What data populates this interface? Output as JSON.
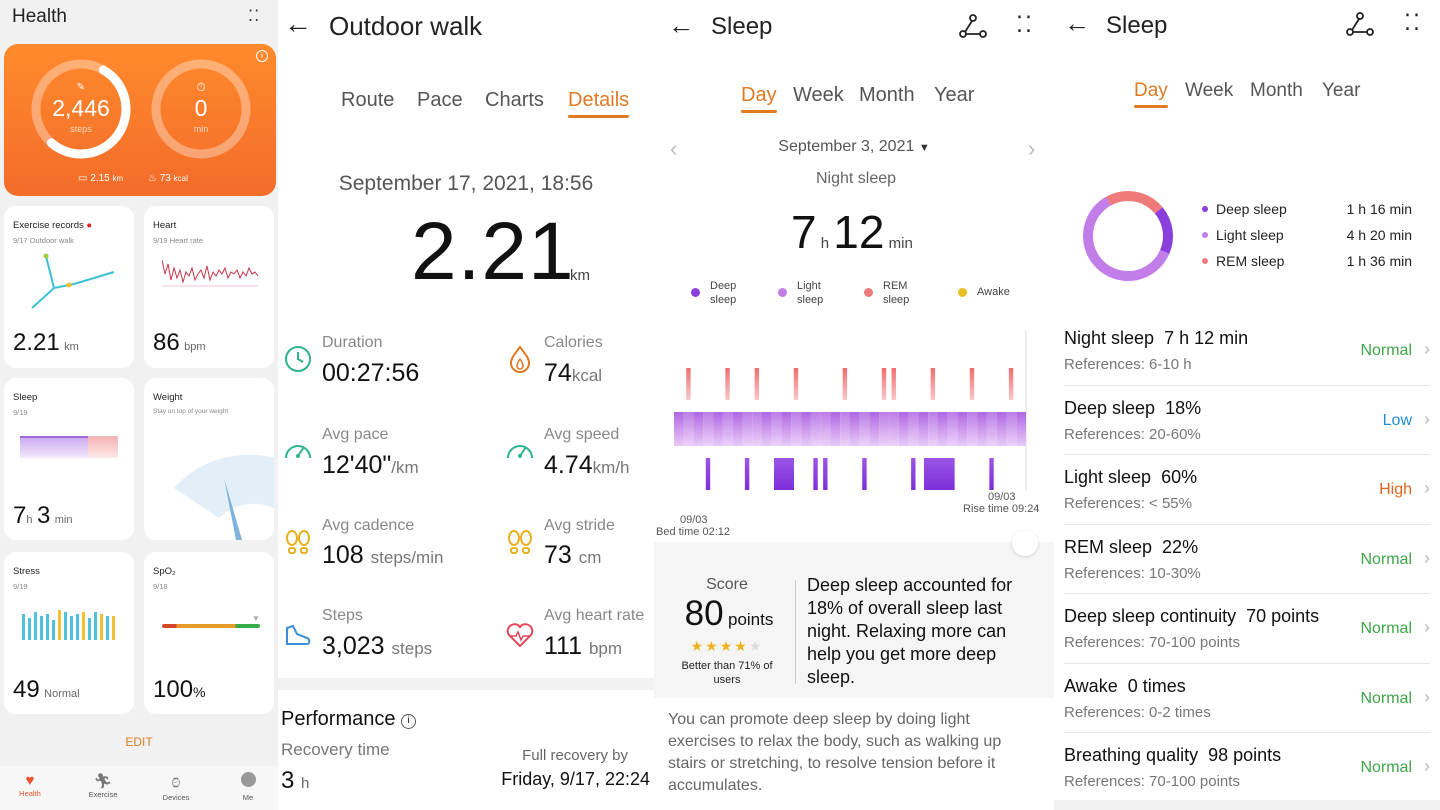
{
  "colors": {
    "accent": "#e07a22",
    "hero": "#f47a2c",
    "deep": "#8a3fdc",
    "light": "#c27ee8",
    "rem": "#ef7a7a",
    "awake": "#e6c020",
    "normal": "#3ea546",
    "low": "#1f8fd0"
  },
  "health": {
    "title": "Health",
    "steps_value": "2,446",
    "steps_label": "steps",
    "minutes_value": "0",
    "minutes_label": "min",
    "distance": "2.15",
    "distance_unit": "km",
    "calories": "73",
    "calories_unit": "kcal",
    "exercise": {
      "title": "Exercise records",
      "date": "9/17",
      "activity": "Outdoor walk",
      "value": "2.21",
      "unit": "km"
    },
    "heart": {
      "title": "Heart",
      "date": "9/19",
      "label": "Heart rate",
      "value": "86",
      "unit": "bpm"
    },
    "sleep": {
      "title": "Sleep",
      "date": "9/19",
      "h": "7",
      "h_unit": "h",
      "m": "3",
      "m_unit": "min"
    },
    "weight": {
      "title": "Weight",
      "subtitle": "Stay on top of your weight"
    },
    "stress": {
      "title": "Stress",
      "date": "9/19",
      "value": "49",
      "label": "Normal"
    },
    "spo2": {
      "title": "SpO₂",
      "date": "9/18",
      "value": "100",
      "unit": "%"
    },
    "edit": "EDIT",
    "nav": [
      {
        "label": "Health",
        "icon": "heart-icon"
      },
      {
        "label": "Exercise",
        "icon": "running-icon"
      },
      {
        "label": "Devices",
        "icon": "watch-icon"
      },
      {
        "label": "Me",
        "icon": "profile-icon"
      }
    ]
  },
  "walk": {
    "title": "Outdoor walk",
    "tabs": [
      "Route",
      "Pace",
      "Charts",
      "Details"
    ],
    "active_tab": "Details",
    "datetime": "September 17, 2021, 18:56",
    "distance": "2.21",
    "distance_unit": "km",
    "stats": [
      {
        "label": "Duration",
        "value": "00:27:56",
        "unit": "",
        "icon": "clock-icon"
      },
      {
        "label": "Calories",
        "value": "74",
        "unit": "kcal",
        "icon": "flame-icon"
      },
      {
        "label": "Avg pace",
        "value": "12'40\"",
        "unit": "/km",
        "icon": "speedometer-icon"
      },
      {
        "label": "Avg speed",
        "value": "4.74",
        "unit": "km/h",
        "icon": "speedometer-icon"
      },
      {
        "label": "Avg cadence",
        "value": "108",
        "unit": "steps/min",
        "icon": "footprints-icon"
      },
      {
        "label": "Avg stride",
        "value": "73",
        "unit": "cm",
        "icon": "footprints-icon"
      },
      {
        "label": "Steps",
        "value": "3,023",
        "unit": "steps",
        "icon": "shoe-icon"
      },
      {
        "label": "Avg heart rate",
        "value": "111",
        "unit": "bpm",
        "icon": "heart-rate-icon"
      }
    ],
    "performance_title": "Performance",
    "recovery_label": "Recovery time",
    "recovery_value": "3",
    "recovery_unit": "h",
    "full_recovery_label": "Full recovery by",
    "full_recovery_value": "Friday, 9/17, 22:24"
  },
  "sleep_day": {
    "title": "Sleep",
    "tabs": [
      "Day",
      "Week",
      "Month",
      "Year"
    ],
    "active_tab": "Day",
    "date": "September 3, 2021",
    "kind": "Night sleep",
    "hours": "7",
    "hours_unit": "h",
    "minutes": "12",
    "minutes_unit": "min",
    "legend": [
      "Deep sleep",
      "Light sleep",
      "REM sleep",
      "Awake"
    ],
    "bed_date": "09/03",
    "bed_time": "Bed time 02:12",
    "rise_date": "09/03",
    "rise_time": "Rise time 09:24",
    "score_label": "Score",
    "score_value": "80",
    "score_unit": "points",
    "stars": 4,
    "better_than": "Better than 71% of users",
    "summary": "Deep sleep accounted for 18% of overall sleep last night. Relaxing more can help you get more deep sleep.",
    "advice": "You can promote deep sleep by doing light exercises to relax the body, such as walking up stairs or stretching, to resolve tension before it accumulates."
  },
  "sleep_stats": {
    "title": "Sleep",
    "tabs": [
      "Day",
      "Week",
      "Month",
      "Year"
    ],
    "active_tab": "Day",
    "breakdown": [
      {
        "label": "Deep sleep",
        "value": "1 h 16 min",
        "minutes": 76
      },
      {
        "label": "Light sleep",
        "value": "4 h 20 min",
        "minutes": 260
      },
      {
        "label": "REM sleep",
        "value": "1 h 36 min",
        "minutes": 96
      }
    ],
    "rows": [
      {
        "title": "Night sleep",
        "value": "7 h 12 min",
        "ref": "References: 6-10 h",
        "status": "Normal",
        "kind": "normal"
      },
      {
        "title": "Deep sleep",
        "value": "18%",
        "ref": "References: 20-60%",
        "status": "Low",
        "kind": "low"
      },
      {
        "title": "Light sleep",
        "value": "60%",
        "ref": "References: < 55%",
        "status": "High",
        "kind": "high"
      },
      {
        "title": "REM sleep",
        "value": "22%",
        "ref": "References: 10-30%",
        "status": "Normal",
        "kind": "normal"
      },
      {
        "title": "Deep sleep continuity",
        "value": "70 points",
        "ref": "References: 70-100 points",
        "status": "Normal",
        "kind": "normal"
      },
      {
        "title": "Awake",
        "value": "0 times",
        "ref": "References: 0-2 times",
        "status": "Normal",
        "kind": "normal"
      },
      {
        "title": "Breathing quality",
        "value": "98 points",
        "ref": "References: 70-100 points",
        "status": "Normal",
        "kind": "normal"
      }
    ]
  }
}
